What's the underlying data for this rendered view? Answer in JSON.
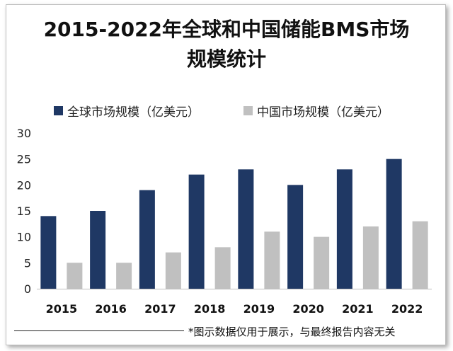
{
  "chart_data": {
    "type": "bar",
    "title_line1": "2015-2022年全球和中国储能BMS市场",
    "title_line2": "规模统计",
    "categories": [
      "2015",
      "2016",
      "2017",
      "2018",
      "2019",
      "2020",
      "2021",
      "2022"
    ],
    "series": [
      {
        "name": "全球市场规模（亿美元）",
        "color": "#1f3864",
        "values": [
          14,
          15,
          19,
          22,
          23,
          20,
          23,
          25
        ]
      },
      {
        "name": "中国市场规模（亿美元）",
        "color": "#c0c0c0",
        "values": [
          5,
          5,
          7,
          8,
          11,
          10,
          12,
          13
        ]
      }
    ],
    "y_ticks": [
      "0",
      "5",
      "10",
      "15",
      "20",
      "25",
      "30"
    ],
    "ylim": [
      0,
      30
    ],
    "grid": false,
    "legend_position": "top-left",
    "footer": "*图示数据仅用于展示，与最终报告内容无关"
  }
}
